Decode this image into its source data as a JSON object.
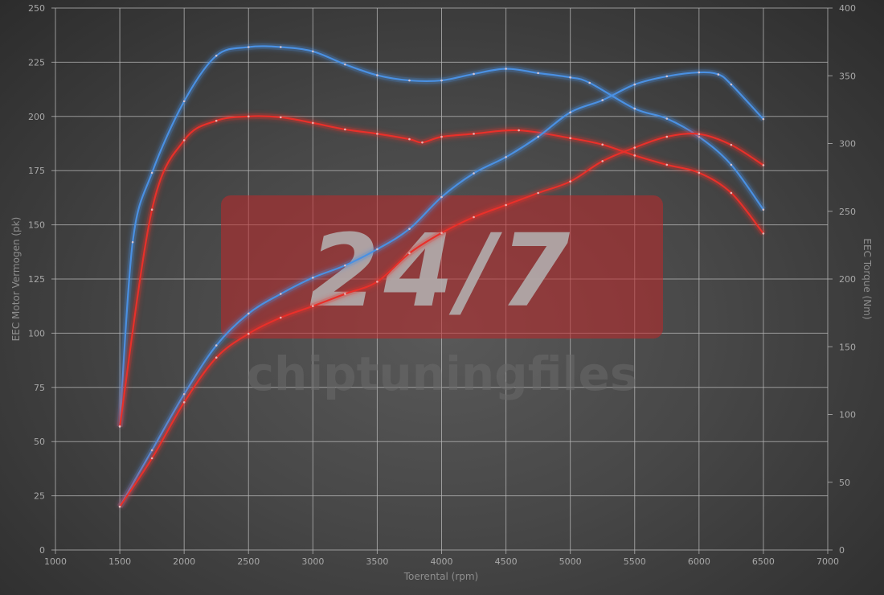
{
  "chart_data": {
    "type": "line",
    "title": "",
    "xlabel": "Toerental (rpm)",
    "ylabel_left": "EEC Motor Vermogen (pk)",
    "ylabel_right": "EEC Torque (Nm)",
    "xlim": [
      1000,
      7000
    ],
    "ylim_left": [
      0,
      250
    ],
    "ylim_right": [
      0,
      400
    ],
    "xticks": [
      1000,
      1500,
      2000,
      2500,
      3000,
      3500,
      4000,
      4500,
      5000,
      5500,
      6000,
      6500,
      7000
    ],
    "yticks_left": [
      0,
      25,
      50,
      75,
      100,
      125,
      150,
      175,
      200,
      225,
      250
    ],
    "yticks_right": [
      0,
      50,
      100,
      150,
      200,
      250,
      300,
      350,
      400
    ],
    "grid": true,
    "series": [
      {
        "axis": "left",
        "color": "#4a90e2",
        "points": [
          [
            1500,
            57
          ],
          [
            1600,
            142
          ],
          [
            1750,
            174
          ],
          [
            2000,
            207
          ],
          [
            2250,
            228
          ],
          [
            2500,
            232
          ],
          [
            2750,
            232
          ],
          [
            3000,
            230
          ],
          [
            3250,
            224
          ],
          [
            3500,
            219
          ],
          [
            3750,
            216.6
          ],
          [
            4000,
            216.6
          ],
          [
            4250,
            219.6
          ],
          [
            4500,
            222
          ],
          [
            4750,
            220
          ],
          [
            5000,
            218
          ],
          [
            5150,
            215.5
          ],
          [
            5500,
            203.6
          ],
          [
            5750,
            199
          ],
          [
            6000,
            190.6
          ],
          [
            6250,
            177.7
          ],
          [
            6500,
            157
          ]
        ]
      },
      {
        "axis": "left",
        "color": "#e8302a",
        "points": [
          [
            1500,
            57
          ],
          [
            1750,
            157
          ],
          [
            2000,
            189
          ],
          [
            2250,
            198
          ],
          [
            2500,
            200
          ],
          [
            2750,
            199.6
          ],
          [
            3000,
            197
          ],
          [
            3250,
            194
          ],
          [
            3500,
            192
          ],
          [
            3750,
            189.5
          ],
          [
            3850,
            188
          ],
          [
            4000,
            190.6
          ],
          [
            4250,
            192
          ],
          [
            4600,
            193.6
          ],
          [
            5000,
            190
          ],
          [
            5250,
            187
          ],
          [
            5500,
            182
          ],
          [
            5750,
            177.7
          ],
          [
            6000,
            174
          ],
          [
            6250,
            164.7
          ],
          [
            6500,
            146
          ]
        ]
      },
      {
        "axis": "right",
        "color": "#4a90e2",
        "points": [
          [
            1500,
            32
          ],
          [
            1750,
            73.6
          ],
          [
            2000,
            115
          ],
          [
            2250,
            151
          ],
          [
            2500,
            174.5
          ],
          [
            2750,
            189
          ],
          [
            3000,
            201
          ],
          [
            3250,
            210
          ],
          [
            3500,
            222
          ],
          [
            3750,
            237
          ],
          [
            4000,
            260.5
          ],
          [
            4250,
            278
          ],
          [
            4500,
            290
          ],
          [
            4750,
            305
          ],
          [
            5000,
            323
          ],
          [
            5250,
            332
          ],
          [
            5500,
            343.6
          ],
          [
            5750,
            349.6
          ],
          [
            6000,
            352.5
          ],
          [
            6150,
            351
          ],
          [
            6250,
            343.6
          ],
          [
            6500,
            318
          ]
        ]
      },
      {
        "axis": "right",
        "color": "#e8302a",
        "points": [
          [
            1500,
            32
          ],
          [
            1750,
            67.7
          ],
          [
            2000,
            109
          ],
          [
            2250,
            142
          ],
          [
            2500,
            159.6
          ],
          [
            2750,
            171.5
          ],
          [
            3000,
            180
          ],
          [
            3250,
            189
          ],
          [
            3500,
            198
          ],
          [
            3750,
            219
          ],
          [
            4000,
            234
          ],
          [
            4250,
            245.7
          ],
          [
            4500,
            254.6
          ],
          [
            4750,
            263.5
          ],
          [
            5000,
            272
          ],
          [
            5250,
            287
          ],
          [
            5500,
            297
          ],
          [
            5750,
            305
          ],
          [
            6000,
            307
          ],
          [
            6250,
            299
          ],
          [
            6500,
            284
          ]
        ]
      }
    ]
  },
  "watermark": {
    "logo_text": "24/7",
    "brand_text": "chiptuningfiles",
    "color": "#c0282a"
  }
}
